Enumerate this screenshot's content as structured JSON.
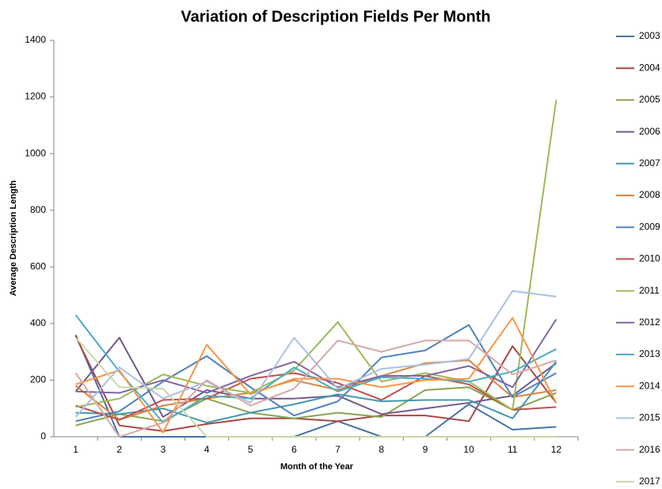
{
  "chart_data": {
    "type": "line",
    "title": "Variation of Description Fields Per Month",
    "xlabel": "Month of the Year",
    "ylabel": "Average Description Length",
    "categories": [
      "1",
      "2",
      "3",
      "4",
      "5",
      "6",
      "7",
      "8",
      "9",
      "10",
      "11",
      "12"
    ],
    "ylim": [
      0,
      1400
    ],
    "yticks": [
      0,
      200,
      400,
      600,
      800,
      1000,
      1200,
      1400
    ],
    "grid": false,
    "legend": "right",
    "series": [
      {
        "name": "2003",
        "color": "#4572A7",
        "values": [
          360,
          0,
          0,
          0,
          0,
          0,
          55,
          0,
          0,
          115,
          25,
          35
        ]
      },
      {
        "name": "2004",
        "color": "#AA4643",
        "values": [
          355,
          40,
          20,
          45,
          65,
          65,
          55,
          75,
          75,
          55,
          320,
          120
        ]
      },
      {
        "name": "2005",
        "color": "#89A54E",
        "values": [
          40,
          80,
          55,
          135,
          85,
          65,
          85,
          70,
          165,
          175,
          95,
          155
        ]
      },
      {
        "name": "2006",
        "color": "#71588F",
        "values": [
          160,
          350,
          70,
          165,
          135,
          135,
          145,
          80,
          100,
          120,
          145,
          260
        ]
      },
      {
        "name": "2007",
        "color": "#4198AF",
        "values": [
          85,
          80,
          100,
          50,
          85,
          115,
          150,
          125,
          130,
          130,
          65,
          265
        ]
      },
      {
        "name": "2008",
        "color": "#DB843D",
        "values": [
          180,
          60,
          110,
          135,
          155,
          200,
          165,
          215,
          260,
          270,
          140,
          165
        ]
      },
      {
        "name": "2009",
        "color": "#4F81BD",
        "values": [
          55,
          90,
          195,
          285,
          175,
          75,
          125,
          280,
          305,
          395,
          140,
          225
        ]
      },
      {
        "name": "2010",
        "color": "#C0504D",
        "values": [
          110,
          60,
          130,
          135,
          205,
          225,
          190,
          130,
          215,
          185,
          95,
          105
        ]
      },
      {
        "name": "2011",
        "color": "#9BBB59",
        "values": [
          105,
          135,
          220,
          180,
          155,
          235,
          405,
          195,
          225,
          195,
          95,
          1190
        ]
      },
      {
        "name": "2012",
        "color": "#8064A2",
        "values": [
          160,
          155,
          200,
          155,
          215,
          265,
          175,
          215,
          215,
          250,
          175,
          415
        ]
      },
      {
        "name": "2013",
        "color": "#4BACC6",
        "values": [
          430,
          230,
          50,
          145,
          135,
          245,
          160,
          210,
          205,
          195,
          230,
          310
        ]
      },
      {
        "name": "2014",
        "color": "#F79646",
        "values": [
          185,
          235,
          15,
          325,
          150,
          205,
          205,
          175,
          200,
          205,
          420,
          120
        ]
      },
      {
        "name": "2015",
        "color": "#A9C1E3",
        "values": [
          70,
          245,
          135,
          195,
          120,
          350,
          170,
          240,
          255,
          275,
          515,
          495
        ]
      },
      {
        "name": "2016",
        "color": "#D6A8A8",
        "values": [
          225,
          0,
          50,
          200,
          110,
          170,
          340,
          300,
          340,
          340,
          220,
          270
        ]
      },
      {
        "name": "2017",
        "color": "#C8D8A8",
        "values": [
          350,
          175,
          170,
          0,
          0,
          0,
          0,
          0,
          0,
          0,
          0,
          0
        ]
      }
    ]
  }
}
